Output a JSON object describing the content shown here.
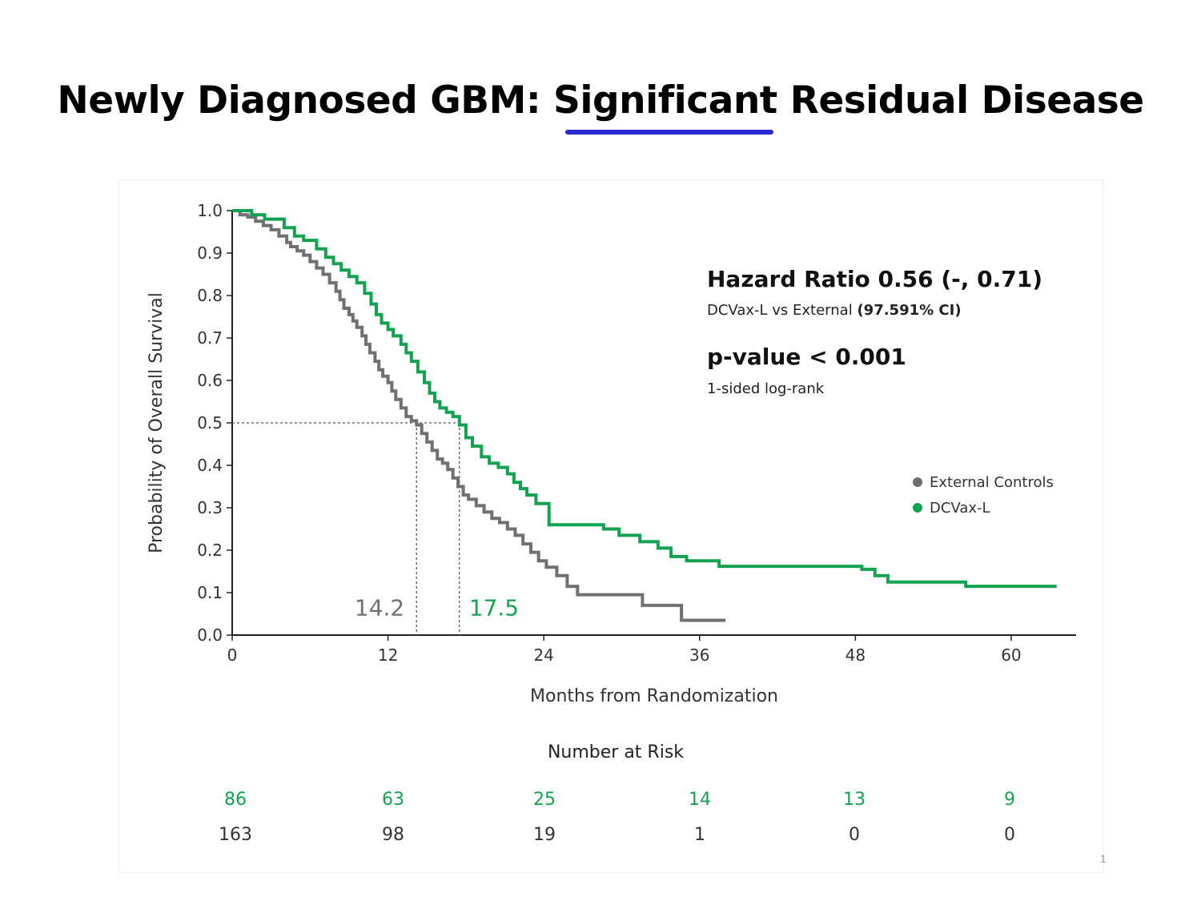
{
  "slide": {
    "title_part1": "Newly Diagnosed GBM: ",
    "title_part2": "Significant",
    "title_part3": " Residual Disease",
    "underline_color": "#2a2ad0",
    "page_number": "1"
  },
  "colors": {
    "dcvax": "#13a350",
    "external": "#707070",
    "axis": "#222222",
    "text": "#333333"
  },
  "chart_data": {
    "type": "line",
    "subtype": "kaplan-meier",
    "xlabel": "Months from Randomization",
    "ylabel": "Probability of Overall Survival",
    "xlim": [
      0,
      65
    ],
    "ylim": [
      0,
      1.0
    ],
    "xticks": [
      0,
      12,
      24,
      36,
      48,
      60
    ],
    "xtick_labels": [
      "0",
      "12",
      "24",
      "36",
      "48",
      "60"
    ],
    "yticks": [
      0,
      0.1,
      0.2,
      0.3,
      0.4,
      0.5,
      0.6,
      0.7,
      0.8,
      0.9,
      1.0
    ],
    "ytick_labels": [
      "0.0",
      "0.1",
      "0.2",
      "0.3",
      "0.4",
      "0.5",
      "0.6",
      "0.7",
      "0.8",
      "0.9",
      "1.0"
    ],
    "grid": false,
    "legend_position": "right",
    "series": [
      {
        "name": "External Controls",
        "color": "#707070",
        "median_label": "14.2",
        "median": 14.2,
        "x": [
          0,
          0.6,
          1.2,
          1.8,
          2.4,
          3.0,
          3.6,
          4.2,
          4.5,
          5.0,
          5.5,
          6.0,
          6.5,
          7.0,
          7.5,
          8.0,
          8.3,
          8.6,
          9.0,
          9.3,
          9.6,
          10.0,
          10.3,
          10.6,
          11.0,
          11.3,
          11.6,
          12.0,
          12.3,
          12.6,
          13.0,
          13.4,
          13.8,
          14.2,
          14.6,
          15.0,
          15.4,
          15.8,
          16.2,
          16.6,
          17.0,
          17.4,
          17.8,
          18.2,
          18.8,
          19.4,
          20.0,
          20.6,
          21.2,
          21.8,
          22.4,
          23.0,
          23.6,
          24.2,
          25.0,
          25.8,
          26.6,
          27.4,
          31.6,
          34.6,
          38.0
        ],
        "y": [
          1.0,
          0.99,
          0.985,
          0.975,
          0.965,
          0.955,
          0.94,
          0.925,
          0.915,
          0.905,
          0.895,
          0.88,
          0.865,
          0.85,
          0.83,
          0.81,
          0.79,
          0.77,
          0.755,
          0.74,
          0.725,
          0.705,
          0.685,
          0.665,
          0.645,
          0.625,
          0.61,
          0.595,
          0.575,
          0.555,
          0.535,
          0.515,
          0.505,
          0.495,
          0.475,
          0.455,
          0.435,
          0.415,
          0.405,
          0.39,
          0.37,
          0.35,
          0.33,
          0.32,
          0.305,
          0.29,
          0.275,
          0.265,
          0.25,
          0.235,
          0.215,
          0.195,
          0.175,
          0.16,
          0.14,
          0.115,
          0.095,
          0.095,
          0.07,
          0.035,
          0.035
        ]
      },
      {
        "name": "DCVax-L",
        "color": "#13a350",
        "median_label": "17.5",
        "median": 17.5,
        "x": [
          0,
          1.5,
          2.5,
          4.0,
          4.8,
          5.5,
          6.5,
          7.2,
          7.8,
          8.4,
          9.0,
          9.6,
          10.2,
          10.7,
          11.1,
          11.5,
          12.0,
          12.4,
          13.0,
          13.4,
          13.8,
          14.3,
          14.8,
          15.2,
          15.6,
          16.0,
          16.5,
          17.0,
          17.5,
          18.0,
          18.5,
          19.2,
          19.8,
          20.5,
          21.2,
          21.7,
          22.2,
          22.7,
          23.4,
          24.4,
          28.6,
          29.8,
          31.4,
          32.8,
          33.8,
          35.0,
          37.5,
          48.5,
          49.5,
          50.5,
          56.5,
          63.5
        ],
        "y": [
          1.0,
          0.99,
          0.98,
          0.96,
          0.94,
          0.93,
          0.91,
          0.89,
          0.875,
          0.86,
          0.845,
          0.83,
          0.805,
          0.78,
          0.755,
          0.735,
          0.72,
          0.705,
          0.685,
          0.665,
          0.645,
          0.62,
          0.595,
          0.57,
          0.55,
          0.535,
          0.525,
          0.515,
          0.495,
          0.465,
          0.445,
          0.42,
          0.405,
          0.395,
          0.38,
          0.36,
          0.345,
          0.33,
          0.31,
          0.26,
          0.25,
          0.235,
          0.22,
          0.205,
          0.185,
          0.175,
          0.162,
          0.155,
          0.14,
          0.125,
          0.115,
          0.115
        ]
      }
    ],
    "annotations": {
      "hazard_ratio_text": "Hazard Ratio 0.56 (-, 0.71)",
      "comparison_prefix": "DCVax-L vs External ",
      "comparison_ci": "(97.591% CI)",
      "pvalue_text": "p-value < 0.001",
      "test_text": "1-sided log-rank"
    },
    "risk_table": {
      "title": "Number at Risk",
      "dcvax": [
        "86",
        "63",
        "25",
        "14",
        "13",
        "9"
      ],
      "external": [
        "163",
        "98",
        "19",
        "1",
        "0",
        "0"
      ]
    }
  }
}
